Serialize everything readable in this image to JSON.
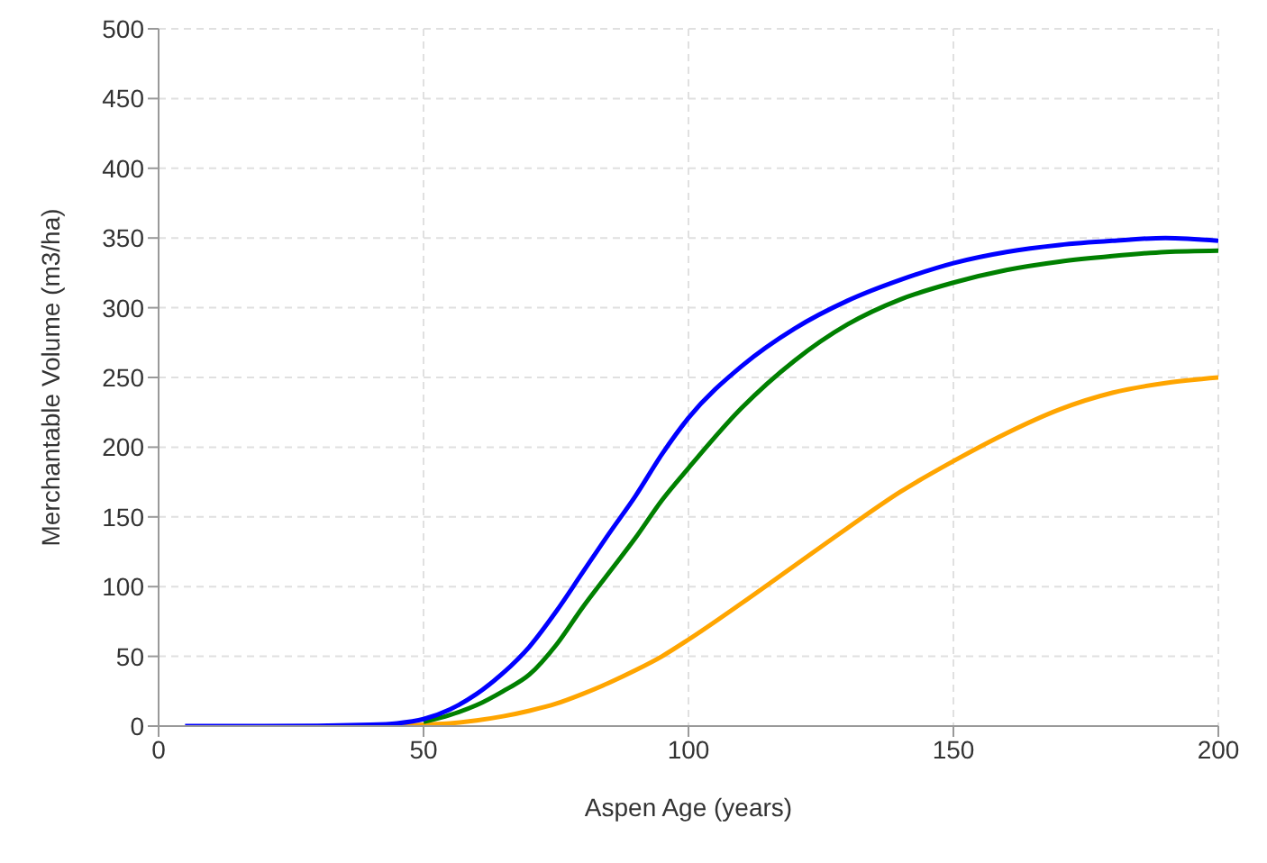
{
  "chart_data": {
    "type": "line",
    "xlabel": "Aspen Age (years)",
    "ylabel": "Merchantable Volume (m3/ha)",
    "x": [
      5,
      20,
      40,
      45,
      50,
      55,
      60,
      65,
      70,
      75,
      80,
      85,
      90,
      95,
      100,
      110,
      120,
      130,
      140,
      150,
      160,
      170,
      180,
      190,
      200
    ],
    "series": [
      {
        "color": "#0000ff",
        "values": [
          0,
          0,
          1,
          2,
          5,
          12,
          23,
          38,
          57,
          82,
          110,
          138,
          165,
          195,
          221,
          258,
          285,
          305,
          320,
          332,
          340,
          345,
          348,
          350,
          348
        ]
      },
      {
        "color": "#008000",
        "values": [
          null,
          null,
          null,
          null,
          3,
          8,
          15,
          25,
          37,
          58,
          85,
          110,
          135,
          162,
          185,
          228,
          262,
          288,
          306,
          318,
          327,
          333,
          337,
          340,
          341
        ]
      },
      {
        "color": "#ffa500",
        "values": [
          null,
          null,
          null,
          0,
          1,
          2,
          4,
          7,
          11,
          16,
          23,
          31,
          40,
          50,
          62,
          88,
          115,
          142,
          168,
          190,
          210,
          227,
          239,
          246,
          250
        ]
      }
    ],
    "xlim": [
      0,
      200
    ],
    "xticks": [
      0,
      50,
      100,
      150,
      200
    ],
    "ylim": [
      0,
      500
    ],
    "yticks": [
      0,
      50,
      100,
      150,
      200,
      250,
      300,
      350,
      400,
      450,
      500
    ],
    "grid": true,
    "marker": "none",
    "line_style": "solid",
    "legend": false
  }
}
